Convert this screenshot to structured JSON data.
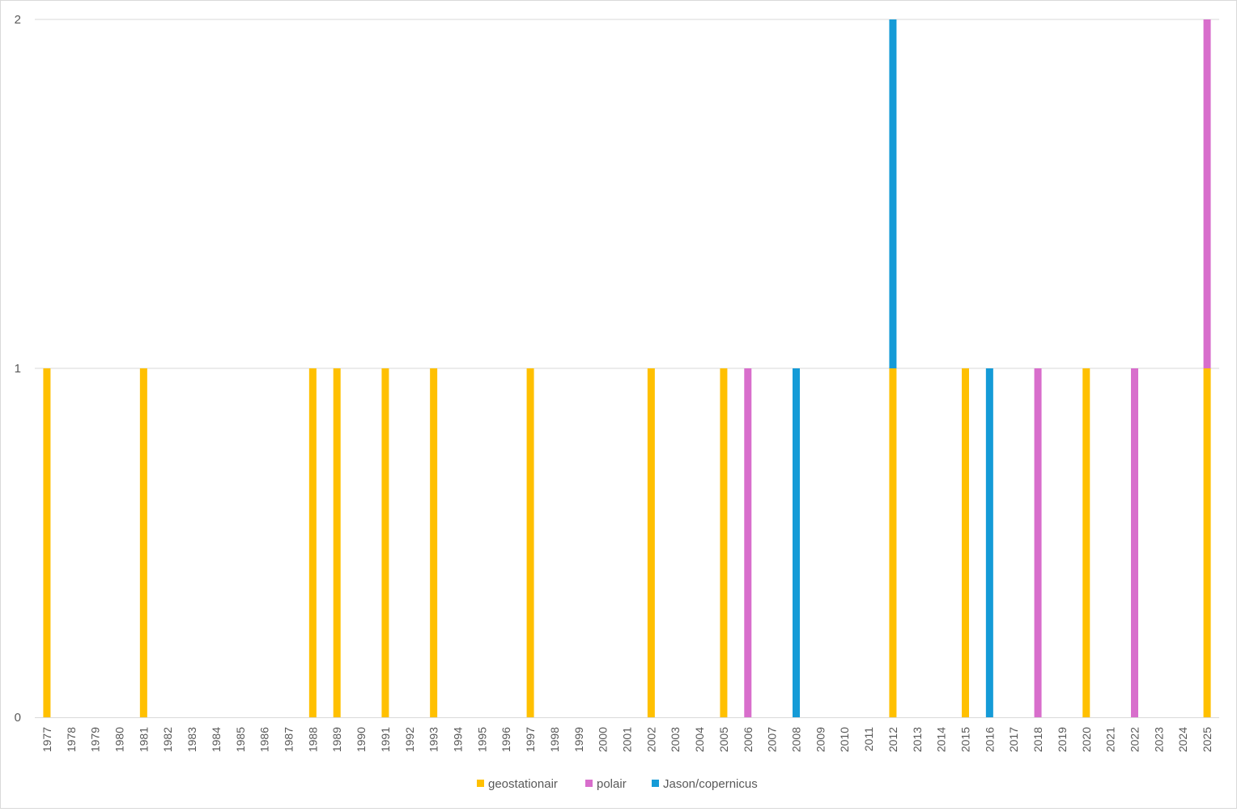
{
  "chart_data": {
    "type": "bar",
    "stacked": true,
    "categories": [
      "1977",
      "1978",
      "1979",
      "1980",
      "1981",
      "1982",
      "1983",
      "1984",
      "1985",
      "1986",
      "1987",
      "1988",
      "1989",
      "1990",
      "1991",
      "1992",
      "1993",
      "1994",
      "1995",
      "1996",
      "1997",
      "1998",
      "1999",
      "2000",
      "2001",
      "2002",
      "2003",
      "2004",
      "2005",
      "2006",
      "2007",
      "2008",
      "2009",
      "2010",
      "2011",
      "2012",
      "2013",
      "2014",
      "2015",
      "2016",
      "2017",
      "2018",
      "2019",
      "2020",
      "2021",
      "2022",
      "2023",
      "2024",
      "2025"
    ],
    "series": [
      {
        "name": "geostationair",
        "color": "#FFC000",
        "values": [
          1,
          0,
          0,
          0,
          1,
          0,
          0,
          0,
          0,
          0,
          0,
          1,
          1,
          0,
          1,
          0,
          1,
          0,
          0,
          0,
          1,
          0,
          0,
          0,
          0,
          1,
          0,
          0,
          1,
          0,
          0,
          0,
          0,
          0,
          0,
          1,
          0,
          0,
          1,
          0,
          0,
          0,
          0,
          1,
          0,
          0,
          0,
          0,
          1
        ]
      },
      {
        "name": "polair",
        "color": "#D86ECC",
        "values": [
          0,
          0,
          0,
          0,
          0,
          0,
          0,
          0,
          0,
          0,
          0,
          0,
          0,
          0,
          0,
          0,
          0,
          0,
          0,
          0,
          0,
          0,
          0,
          0,
          0,
          0,
          0,
          0,
          0,
          1,
          0,
          0,
          0,
          0,
          0,
          0,
          0,
          0,
          0,
          0,
          0,
          1,
          0,
          0,
          0,
          1,
          0,
          0,
          1
        ]
      },
      {
        "name": "Jason/copernicus",
        "color": "#159BD7",
        "values": [
          0,
          0,
          0,
          0,
          0,
          0,
          0,
          0,
          0,
          0,
          0,
          0,
          0,
          0,
          0,
          0,
          0,
          0,
          0,
          0,
          0,
          0,
          0,
          0,
          0,
          0,
          0,
          0,
          0,
          0,
          0,
          1,
          0,
          0,
          0,
          1,
          0,
          0,
          0,
          1,
          0,
          0,
          0,
          0,
          0,
          0,
          0,
          0,
          0
        ]
      }
    ],
    "ylim": [
      0,
      2
    ],
    "yticks": [
      "0",
      "1",
      "2"
    ],
    "grid": true,
    "legend": "bottom",
    "title": "",
    "xlabel": "",
    "ylabel": ""
  }
}
